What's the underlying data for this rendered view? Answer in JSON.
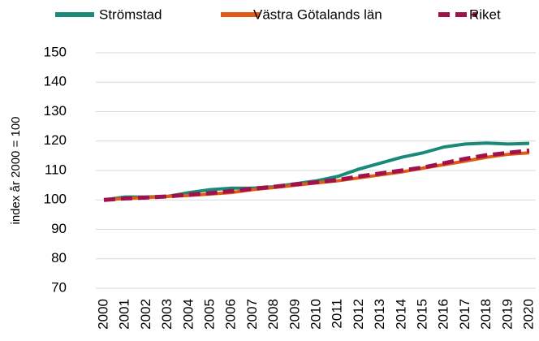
{
  "chart_data": {
    "type": "line",
    "y_label": "index år 2000 = 100",
    "categories": [
      "2000",
      "2001",
      "2002",
      "2003",
      "2004",
      "2005",
      "2006",
      "2007",
      "2008",
      "2009",
      "2010",
      "2011",
      "2012",
      "2013",
      "2014",
      "2015",
      "2016",
      "2017",
      "2018",
      "2019",
      "2020"
    ],
    "series": [
      {
        "name": "Strömstad",
        "color": "#1a8a78",
        "dashed": false,
        "values": [
          100,
          101,
          101,
          101.2,
          102.5,
          103.5,
          104,
          104,
          104.5,
          105.5,
          106.5,
          108,
          110.5,
          112.5,
          114.5,
          116,
          118,
          119,
          119.3,
          119,
          119.2
        ]
      },
      {
        "name": "Västra Götalands län",
        "color": "#e05a12",
        "dashed": false,
        "values": [
          100,
          100.5,
          100.8,
          101.2,
          101.5,
          102,
          102.5,
          103.5,
          104.2,
          105,
          105.8,
          106.5,
          107.5,
          108.5,
          109.5,
          110.8,
          112,
          113.2,
          114.5,
          115.5,
          116
        ]
      },
      {
        "name": "Riket",
        "color": "#a0124e",
        "dashed": true,
        "values": [
          100,
          100.5,
          100.8,
          101.2,
          101.8,
          102.3,
          103,
          103.8,
          104.5,
          105.3,
          106,
          106.8,
          108,
          109,
          110,
          111,
          112.5,
          114,
          115.2,
          116,
          116.8
        ]
      }
    ],
    "ylim": [
      70,
      150
    ],
    "yticks": [
      70,
      80,
      90,
      100,
      110,
      120,
      130,
      140,
      150
    ],
    "grid": true,
    "legend": "top"
  }
}
